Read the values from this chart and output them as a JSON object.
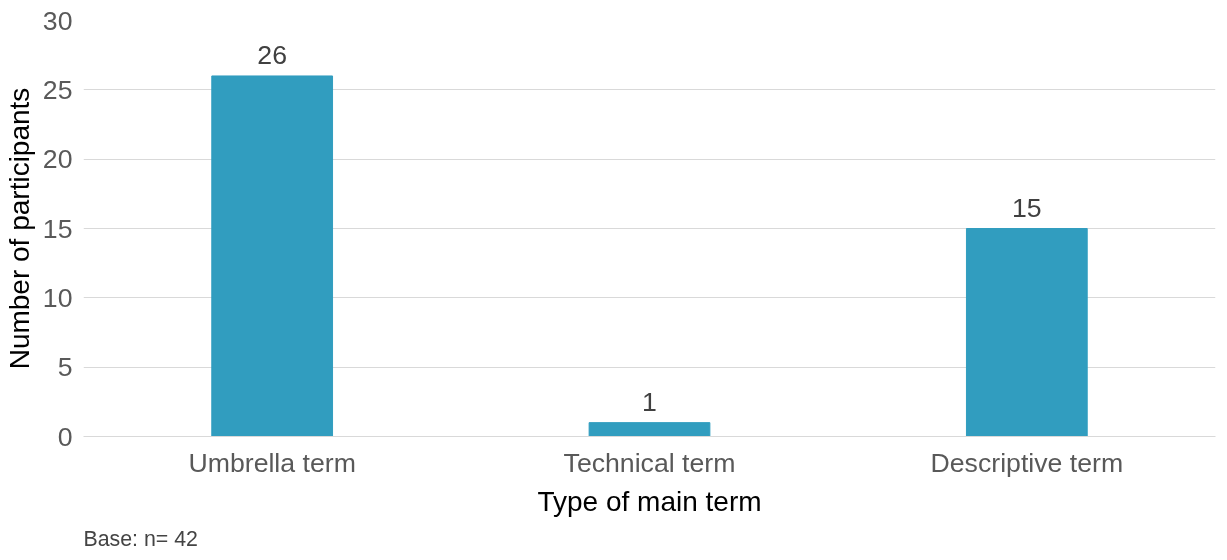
{
  "chart_data": {
    "type": "bar",
    "categories": [
      "Umbrella term",
      "Technical term",
      "Descriptive term"
    ],
    "values": [
      26,
      1,
      15
    ],
    "color": "#319dbf",
    "xlabel": "Type of main term",
    "ylabel": "Number of participants",
    "ylim": [
      0,
      30
    ],
    "yticks": [
      0,
      5,
      10,
      15,
      20,
      25,
      30
    ],
    "grid": "y",
    "data_labels": true,
    "annotations": [
      "Base: n= 42"
    ]
  }
}
